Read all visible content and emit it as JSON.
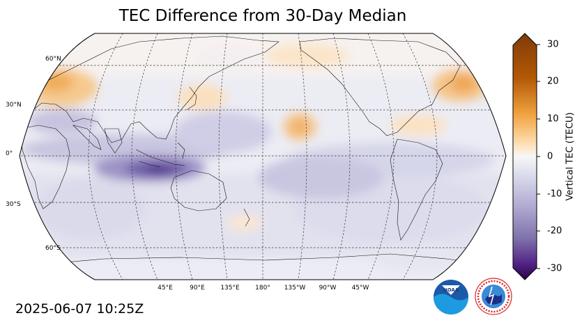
{
  "title": "TEC Difference from 30-Day Median",
  "timestamp": "2025-06-07 10:25Z",
  "latitude_labels": [
    "60°N",
    "30°N",
    "0°",
    "30°S",
    "60°S"
  ],
  "longitude_labels": [
    "45°E",
    "90°E",
    "135°E",
    "180°",
    "135°W",
    "90°W",
    "45°W"
  ],
  "colorbar": {
    "label": "Vertical TEC (TECU)",
    "ticks": [
      "30",
      "20",
      "10",
      "0",
      "-10",
      "-20",
      "-30"
    ],
    "range": [
      -30,
      30
    ],
    "colors": {
      "high": "#7f3b08",
      "mid_high": "#e08214",
      "zero": "#f7f7f7",
      "mid_low": "#8073ac",
      "low": "#2d004b"
    }
  },
  "logos": {
    "noaa": "NOAA",
    "nws": "NATIONAL WEATHER SERVICE"
  },
  "map": {
    "projection": "Robinson",
    "central_longitude": "180°",
    "anomalies": [
      {
        "region": "equatorial Indian Ocean / Indonesia",
        "sign": "negative",
        "tecu": -22
      },
      {
        "region": "central North Pacific near Hawaii",
        "sign": "positive",
        "tecu": 11
      },
      {
        "region": "Europe / Mediterranean",
        "sign": "positive",
        "tecu": 12
      },
      {
        "region": "western North Atlantic",
        "sign": "positive",
        "tecu": 12
      },
      {
        "region": "East China Sea / Japan",
        "sign": "positive",
        "tecu": 6
      },
      {
        "region": "eastern North Pacific",
        "sign": "positive",
        "tecu": 5
      },
      {
        "region": "South Pacific",
        "sign": "negative",
        "tecu": -6
      },
      {
        "region": "southern Indian Ocean",
        "sign": "negative",
        "tecu": -5
      }
    ]
  }
}
